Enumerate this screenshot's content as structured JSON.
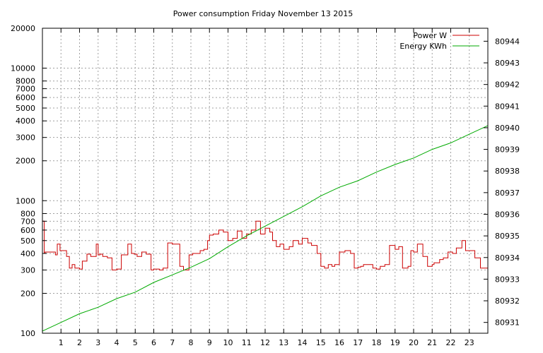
{
  "chart_data": {
    "type": "line",
    "title": "Power consumption Friday November 13 2015",
    "xlabel": "",
    "ylabel": "",
    "y2label": "",
    "grid": true,
    "legend_position": "top-right",
    "xlim": [
      0,
      24
    ],
    "x_ticks": [
      1,
      2,
      3,
      4,
      5,
      6,
      7,
      8,
      9,
      10,
      11,
      12,
      13,
      14,
      15,
      16,
      17,
      18,
      19,
      20,
      21,
      22,
      23
    ],
    "x_tick_labels": [
      "1",
      "2",
      "3",
      "4",
      "5",
      "6",
      "7",
      "8",
      "9",
      "10",
      "11",
      "12",
      "13",
      "14",
      "15",
      "16",
      "17",
      "18",
      "19",
      "20",
      "21",
      "22",
      "23"
    ],
    "y_scale": "log",
    "ylim": [
      100,
      20000
    ],
    "y_ticks": [
      100,
      200,
      300,
      400,
      500,
      600,
      700,
      800,
      1000,
      2000,
      3000,
      4000,
      5000,
      6000,
      7000,
      8000,
      10000,
      20000
    ],
    "y_tick_labels": [
      "100",
      "200",
      "300",
      "400",
      "500",
      "600",
      "700",
      "800",
      "1000",
      "2000",
      "3000",
      "4000",
      "5000",
      "6000",
      "7000",
      "8000",
      "10000",
      "20000"
    ],
    "y2_scale": "linear",
    "y2lim": [
      80930.5,
      80944.6
    ],
    "y2_ticks": [
      80931,
      80932,
      80933,
      80934,
      80935,
      80936,
      80937,
      80938,
      80939,
      80940,
      80941,
      80942,
      80943,
      80944
    ],
    "y2_tick_labels": [
      "80931",
      "80932",
      "80933",
      "80934",
      "80935",
      "80936",
      "80937",
      "80938",
      "80939",
      "80940",
      "80941",
      "80942",
      "80943",
      "80944"
    ],
    "series": [
      {
        "name": "Power W",
        "color": "#cc0000",
        "axis": "left",
        "step": true,
        "x": [
          0.0,
          0.1,
          0.15,
          0.7,
          0.8,
          0.95,
          1.3,
          1.45,
          1.6,
          1.75,
          2.0,
          2.15,
          2.4,
          2.6,
          2.9,
          3.0,
          3.1,
          3.25,
          3.5,
          3.75,
          4.0,
          4.25,
          4.6,
          4.8,
          4.95,
          5.1,
          5.35,
          5.6,
          5.85,
          6.0,
          6.3,
          6.5,
          6.75,
          7.0,
          7.2,
          7.4,
          7.6,
          7.9,
          8.1,
          8.5,
          8.7,
          8.9,
          9.0,
          9.2,
          9.5,
          9.75,
          10.0,
          10.25,
          10.5,
          10.75,
          11.0,
          11.25,
          11.5,
          11.75,
          12.0,
          12.25,
          12.4,
          12.6,
          12.8,
          13.0,
          13.3,
          13.5,
          13.8,
          14.0,
          14.3,
          14.5,
          14.8,
          15.0,
          15.2,
          15.4,
          15.6,
          15.75,
          16.0,
          16.3,
          16.6,
          16.8,
          17.0,
          17.15,
          17.3,
          17.6,
          17.8,
          18.0,
          18.2,
          18.45,
          18.7,
          19.0,
          19.2,
          19.4,
          19.7,
          19.85,
          20.0,
          20.2,
          20.5,
          20.75,
          20.85,
          21.0,
          21.1,
          21.4,
          21.6,
          21.85,
          22.1,
          22.3,
          22.6,
          22.8,
          23.0,
          23.3,
          23.6,
          23.9
        ],
        "y": [
          700,
          400,
          410,
          390,
          470,
          420,
          380,
          310,
          330,
          310,
          305,
          350,
          395,
          380,
          470,
          390,
          395,
          380,
          370,
          300,
          305,
          390,
          470,
          400,
          395,
          380,
          410,
          395,
          300,
          305,
          300,
          310,
          480,
          470,
          470,
          320,
          300,
          390,
          400,
          420,
          430,
          500,
          550,
          560,
          600,
          580,
          500,
          520,
          590,
          520,
          560,
          600,
          700,
          560,
          620,
          580,
          500,
          450,
          470,
          430,
          450,
          500,
          470,
          520,
          480,
          460,
          400,
          320,
          310,
          330,
          320,
          330,
          410,
          420,
          400,
          310,
          315,
          320,
          330,
          330,
          310,
          305,
          320,
          330,
          460,
          430,
          450,
          310,
          320,
          420,
          410,
          470,
          380,
          320,
          320,
          330,
          340,
          360,
          370,
          410,
          400,
          440,
          500,
          420,
          420,
          370,
          310,
          310
        ]
      },
      {
        "name": "Energy KWh",
        "color": "#00aa00",
        "axis": "right",
        "step": false,
        "x": [
          0,
          1,
          2,
          3,
          4,
          5,
          6,
          7,
          8,
          9,
          10,
          11,
          12,
          13,
          14,
          15,
          16,
          17,
          18,
          19,
          20,
          21,
          22,
          23,
          24
        ],
        "y": [
          80930.6,
          80931.0,
          80931.4,
          80931.7,
          80932.1,
          80932.4,
          80932.85,
          80933.2,
          80933.55,
          80933.95,
          80934.5,
          80935.0,
          80935.45,
          80935.9,
          80936.35,
          80936.85,
          80937.25,
          80937.55,
          80937.95,
          80938.3,
          80938.6,
          80939.0,
          80939.3,
          80939.7,
          80940.1
        ]
      }
    ]
  }
}
